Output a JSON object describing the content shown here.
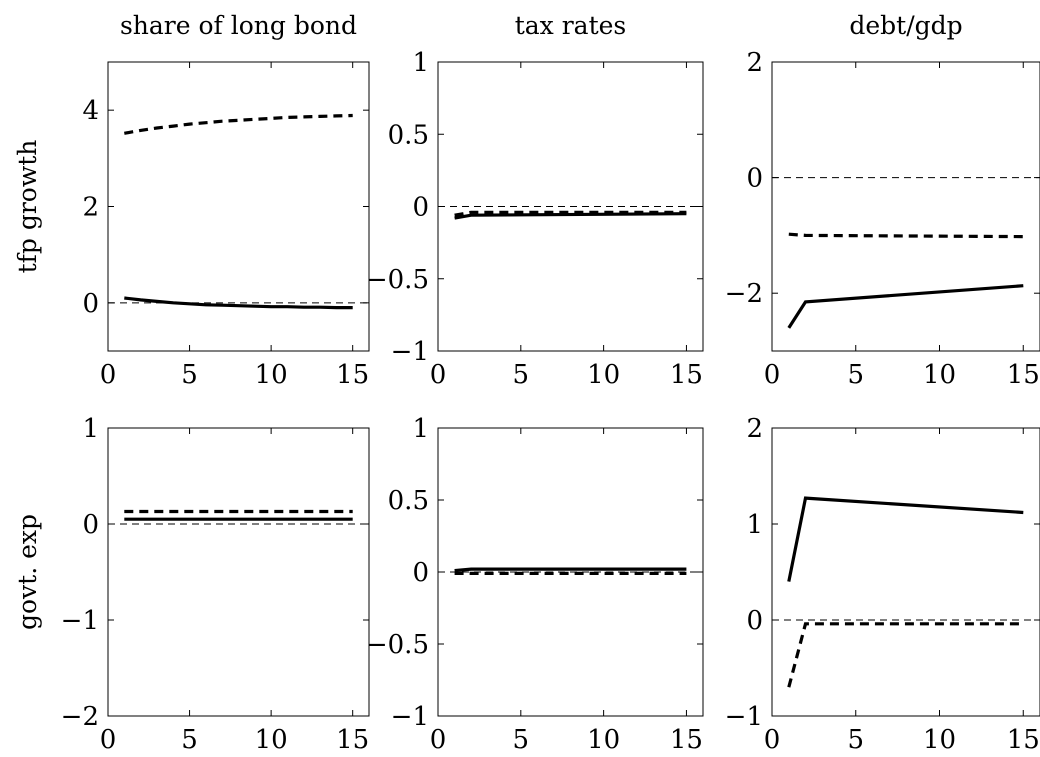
{
  "chart_data": [
    {
      "type": "line",
      "row_label": "tfp growth",
      "col_title": "share of long bond",
      "xlim": [
        0,
        16
      ],
      "ylim": [
        -1,
        5
      ],
      "xticks": [
        0,
        5,
        10,
        15
      ],
      "yticks": [
        0,
        2,
        4
      ],
      "ytick_labels": [
        "0",
        "2",
        "4"
      ],
      "series": [
        {
          "style": "solid",
          "x": [
            1,
            2,
            3,
            4,
            5,
            6,
            7,
            8,
            9,
            10,
            11,
            12,
            13,
            14,
            15
          ],
          "y": [
            0.1,
            0.06,
            0.03,
            0.0,
            -0.02,
            -0.04,
            -0.05,
            -0.06,
            -0.07,
            -0.08,
            -0.08,
            -0.09,
            -0.09,
            -0.1,
            -0.1
          ]
        },
        {
          "style": "dashed",
          "x": [
            1,
            2,
            3,
            4,
            5,
            6,
            7,
            8,
            9,
            10,
            11,
            12,
            13,
            14,
            15
          ],
          "y": [
            3.52,
            3.58,
            3.63,
            3.67,
            3.71,
            3.74,
            3.77,
            3.79,
            3.81,
            3.83,
            3.85,
            3.86,
            3.87,
            3.88,
            3.89
          ]
        }
      ]
    },
    {
      "type": "line",
      "row_label": "",
      "col_title": "tax rates",
      "xlim": [
        0,
        16
      ],
      "ylim": [
        -1,
        1
      ],
      "xticks": [
        0,
        5,
        10,
        15
      ],
      "yticks": [
        -1,
        -0.5,
        0,
        0.5,
        1
      ],
      "ytick_labels": [
        "−1",
        "−0.5",
        "0",
        "0.5",
        "1"
      ],
      "series": [
        {
          "style": "solid",
          "x": [
            1,
            2,
            15
          ],
          "y": [
            -0.08,
            -0.06,
            -0.05
          ]
        },
        {
          "style": "dashed",
          "x": [
            1,
            2,
            15
          ],
          "y": [
            -0.06,
            -0.04,
            -0.04
          ]
        }
      ]
    },
    {
      "type": "line",
      "row_label": "",
      "col_title": "debt/gdp",
      "xlim": [
        0,
        16
      ],
      "ylim": [
        -3,
        2
      ],
      "xticks": [
        0,
        5,
        10,
        15
      ],
      "yticks": [
        -2,
        0,
        2
      ],
      "ytick_labels": [
        "−2",
        "0",
        "2"
      ],
      "series": [
        {
          "style": "solid",
          "x": [
            1,
            2,
            15
          ],
          "y": [
            -2.6,
            -2.15,
            -1.87
          ]
        },
        {
          "style": "dashed",
          "x": [
            1,
            2,
            15
          ],
          "y": [
            -0.98,
            -1.0,
            -1.02
          ]
        }
      ]
    },
    {
      "type": "line",
      "row_label": "govt. exp",
      "col_title": "",
      "xlim": [
        0,
        16
      ],
      "ylim": [
        -2,
        1
      ],
      "xticks": [
        0,
        5,
        10,
        15
      ],
      "yticks": [
        -2,
        -1,
        0,
        1
      ],
      "ytick_labels": [
        "−2",
        "−1",
        "0",
        "1"
      ],
      "series": [
        {
          "style": "solid",
          "x": [
            1,
            15
          ],
          "y": [
            0.05,
            0.05
          ]
        },
        {
          "style": "dashed",
          "x": [
            1,
            15
          ],
          "y": [
            0.13,
            0.13
          ]
        }
      ]
    },
    {
      "type": "line",
      "row_label": "",
      "col_title": "",
      "xlim": [
        0,
        16
      ],
      "ylim": [
        -1,
        1
      ],
      "xticks": [
        0,
        5,
        10,
        15
      ],
      "yticks": [
        -1,
        -0.5,
        0,
        0.5,
        1
      ],
      "ytick_labels": [
        "−1",
        "−0.5",
        "0",
        "0.5",
        "1"
      ],
      "series": [
        {
          "style": "solid",
          "x": [
            1,
            2,
            15
          ],
          "y": [
            0.01,
            0.02,
            0.02
          ]
        },
        {
          "style": "dashed",
          "x": [
            1,
            2,
            15
          ],
          "y": [
            -0.01,
            -0.01,
            -0.01
          ]
        }
      ]
    },
    {
      "type": "line",
      "row_label": "",
      "col_title": "",
      "xlim": [
        0,
        16
      ],
      "ylim": [
        -1,
        2
      ],
      "xticks": [
        0,
        5,
        10,
        15
      ],
      "yticks": [
        -1,
        0,
        1,
        2
      ],
      "ytick_labels": [
        "−1",
        "0",
        "1",
        "2"
      ],
      "series": [
        {
          "style": "solid",
          "x": [
            1,
            2,
            15
          ],
          "y": [
            0.4,
            1.27,
            1.12
          ]
        },
        {
          "style": "dashed",
          "x": [
            1,
            2,
            15
          ],
          "y": [
            -0.7,
            -0.04,
            -0.04
          ]
        }
      ]
    }
  ]
}
